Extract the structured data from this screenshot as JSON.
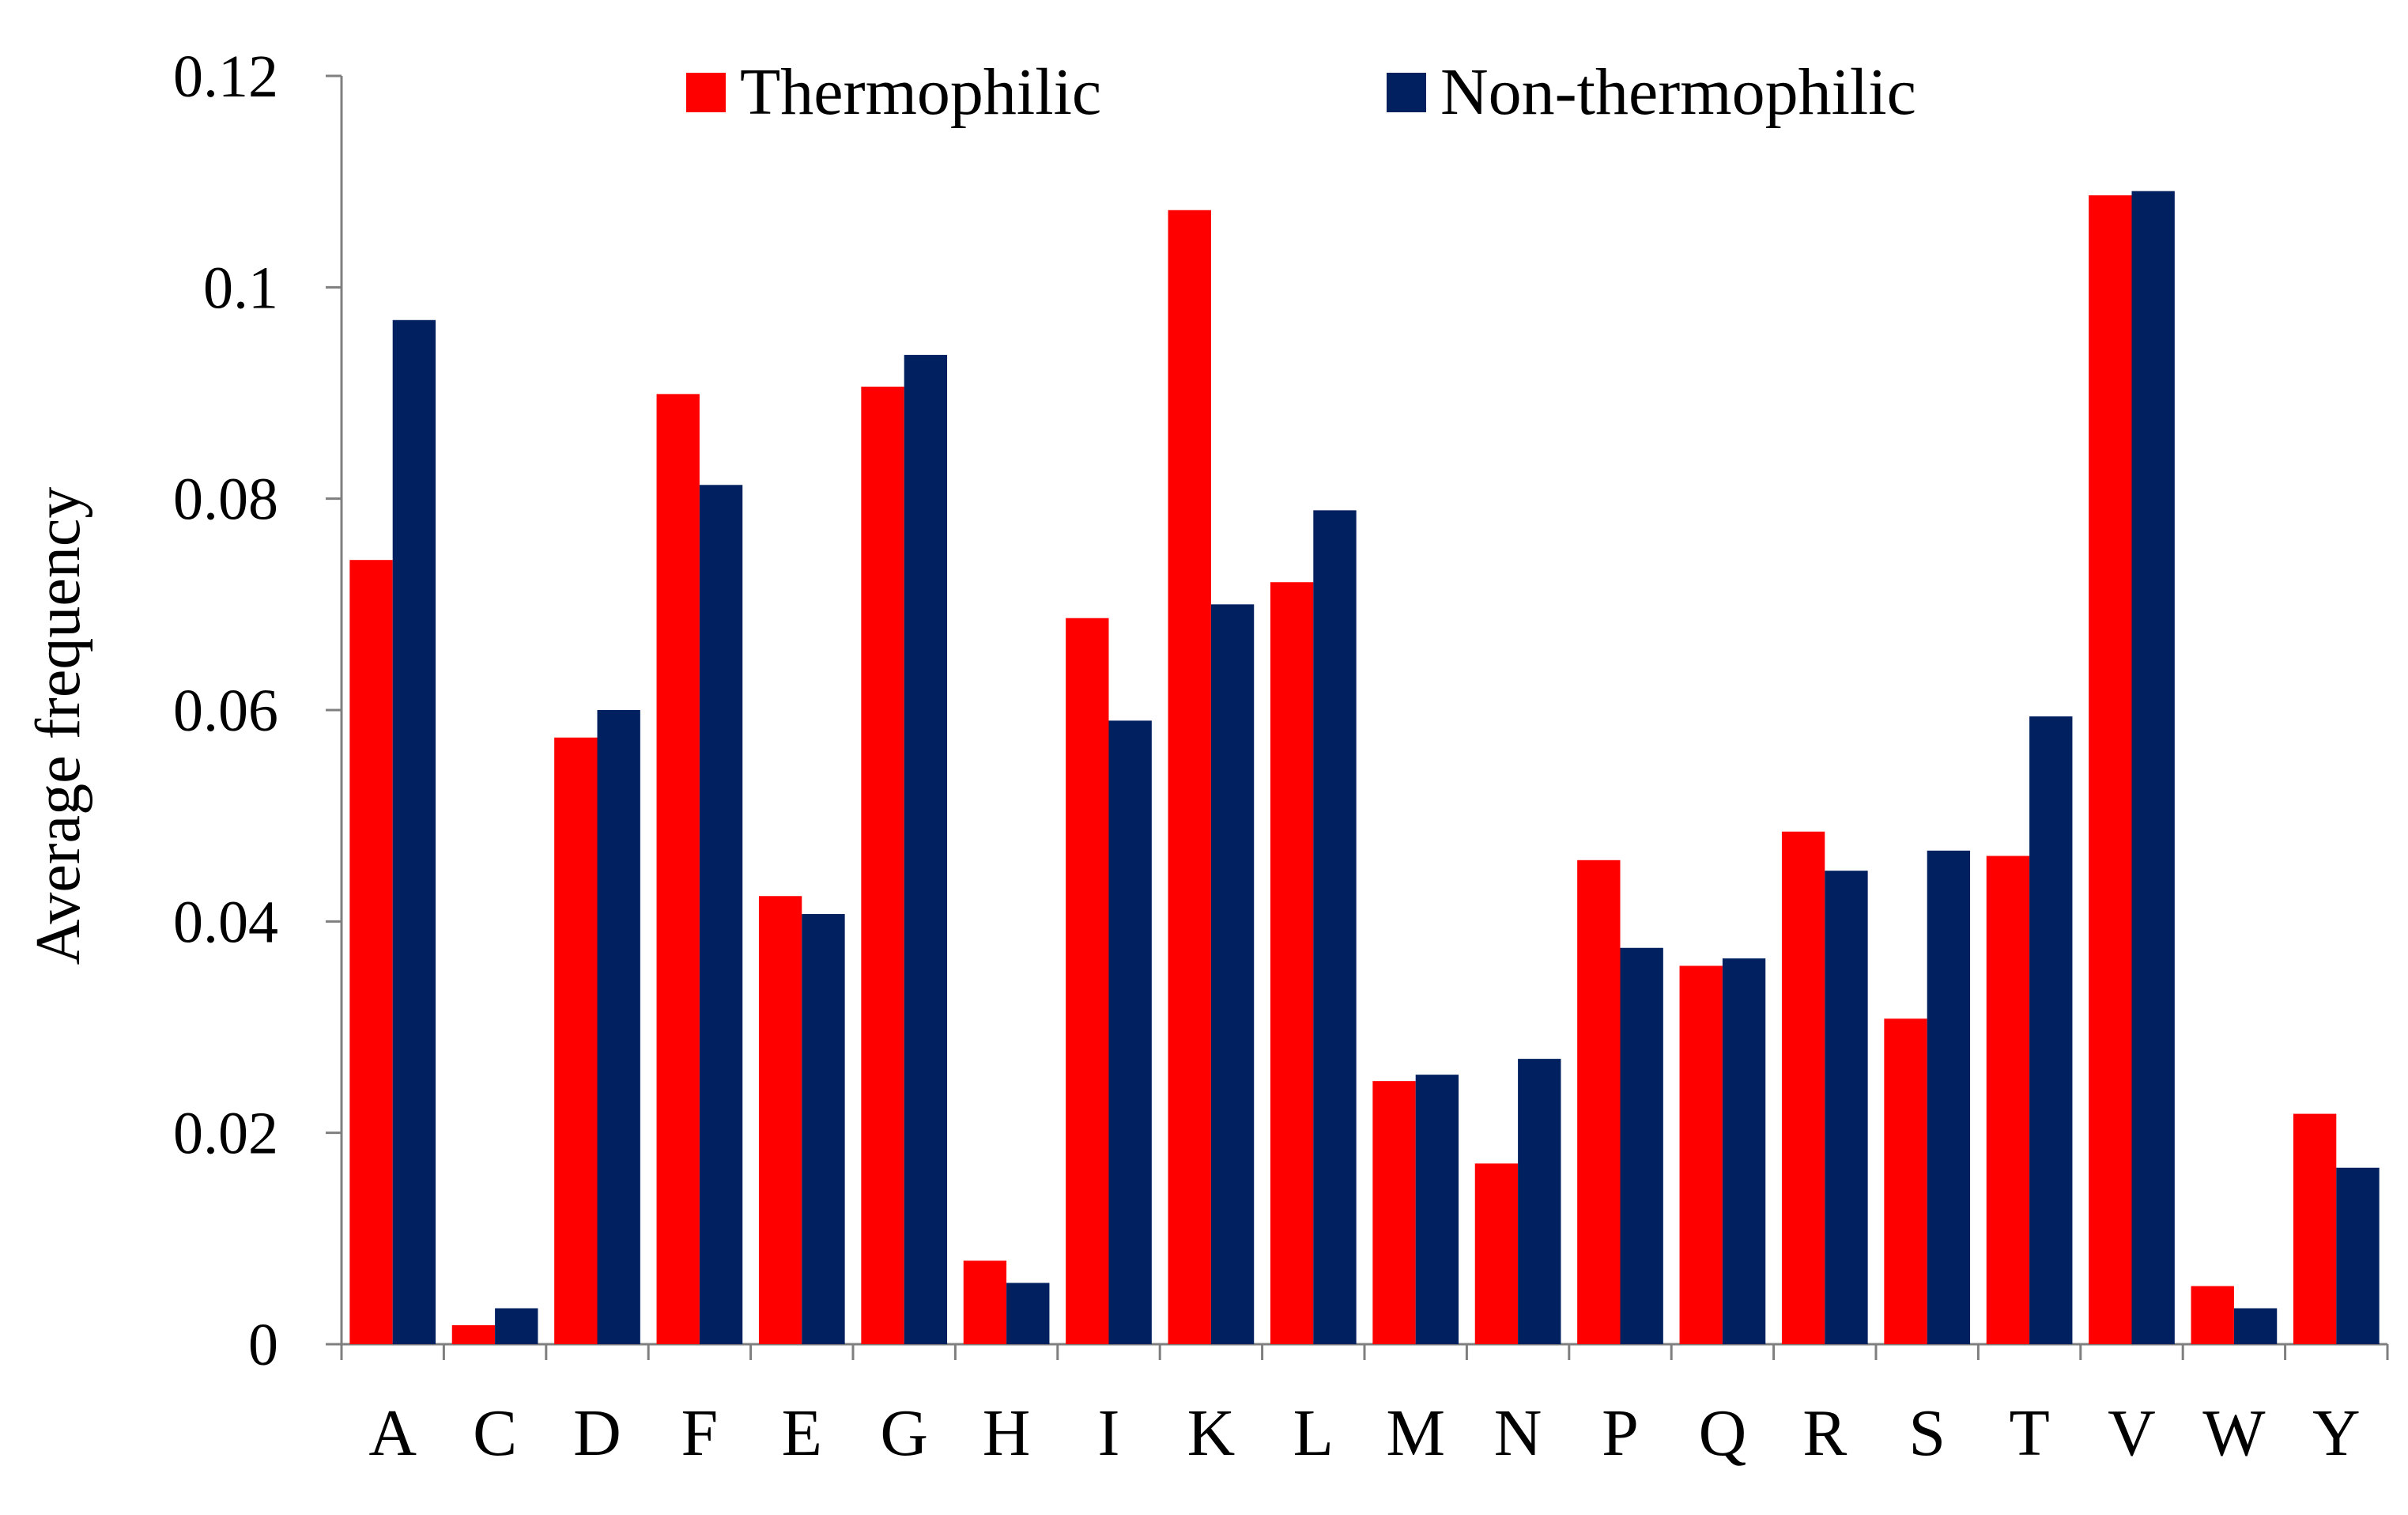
{
  "chart_data": {
    "type": "bar",
    "categories": [
      "A",
      "C",
      "D",
      "F",
      "E",
      "G",
      "H",
      "I",
      "K",
      "L",
      "M",
      "N",
      "P",
      "Q",
      "R",
      "S",
      "T",
      "V",
      "W",
      "Y"
    ],
    "series": [
      {
        "name": "Thermophilic",
        "color": "#ff0000",
        "values": [
          0.0742,
          0.0018,
          0.0574,
          0.0899,
          0.0424,
          0.0906,
          0.0079,
          0.0687,
          0.1073,
          0.0721,
          0.0249,
          0.0171,
          0.0458,
          0.0358,
          0.0485,
          0.0308,
          0.0462,
          0.1087,
          0.0055,
          0.0218
        ]
      },
      {
        "name": "Non-thermophilic",
        "color": "#002060",
        "values": [
          0.0969,
          0.0034,
          0.06,
          0.0813,
          0.0407,
          0.0936,
          0.0058,
          0.059,
          0.07,
          0.0789,
          0.0255,
          0.027,
          0.0375,
          0.0365,
          0.0448,
          0.0467,
          0.0594,
          0.1091,
          0.0034,
          0.0167
        ]
      }
    ],
    "ylabel": "Average frequency",
    "xlabel": "",
    "ylim": [
      0,
      0.12
    ],
    "yticks": [
      0,
      0.02,
      0.04,
      0.06,
      0.08,
      0.1,
      0.12
    ],
    "ytick_labels": [
      "0",
      "0.02",
      "0.04",
      "0.06",
      "0.08",
      "0.1",
      "0.12"
    ],
    "legend_position": "top",
    "grid": false
  }
}
